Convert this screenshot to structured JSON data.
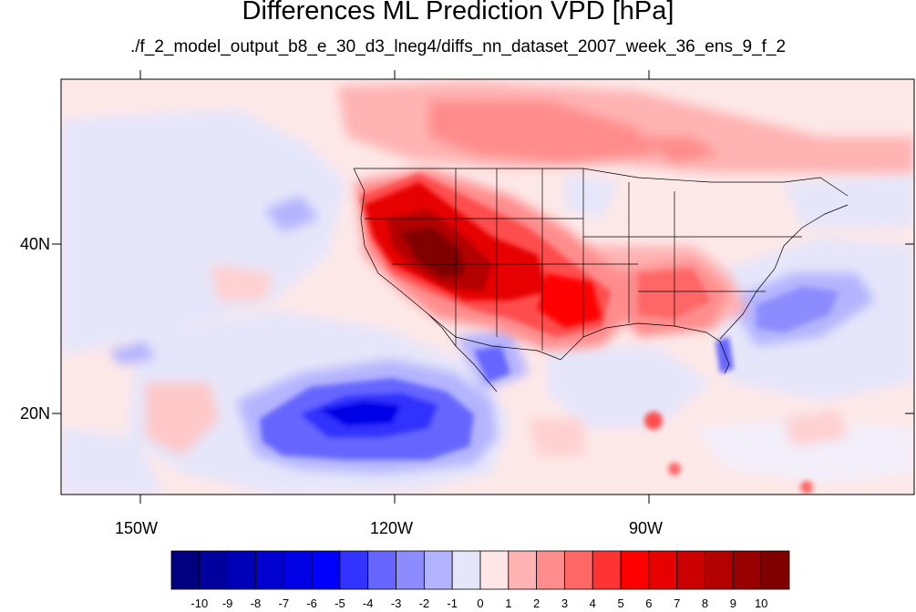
{
  "title": "Differences ML Prediction VPD [hPa]",
  "subtitle": "./f_2_model_output_b8_e_30_d3_lneg4/diffs_nn_dataset_2007_week_36_ens_9_f_2",
  "axes": {
    "y_ticks": [
      "40N",
      "20N"
    ],
    "x_ticks": [
      "150W",
      "120W",
      "90W"
    ]
  },
  "colorbar": {
    "labels": [
      "-10",
      "-9",
      "-8",
      "-7",
      "-6",
      "-5",
      "-4",
      "-3",
      "-2",
      "-1",
      "0",
      "1",
      "2",
      "3",
      "4",
      "5",
      "6",
      "7",
      "8",
      "9",
      "10"
    ],
    "colors": [
      "#000080",
      "#00009e",
      "#0000b8",
      "#0000d0",
      "#0000e6",
      "#0000ff",
      "#3333ff",
      "#6666ff",
      "#8c8cff",
      "#b3b3ff",
      "#e6e6fa",
      "#ffe6e6",
      "#ffb3b3",
      "#ff8c8c",
      "#ff6666",
      "#ff3333",
      "#ff0000",
      "#e60000",
      "#cc0000",
      "#b30000",
      "#990000",
      "#800000"
    ]
  }
}
